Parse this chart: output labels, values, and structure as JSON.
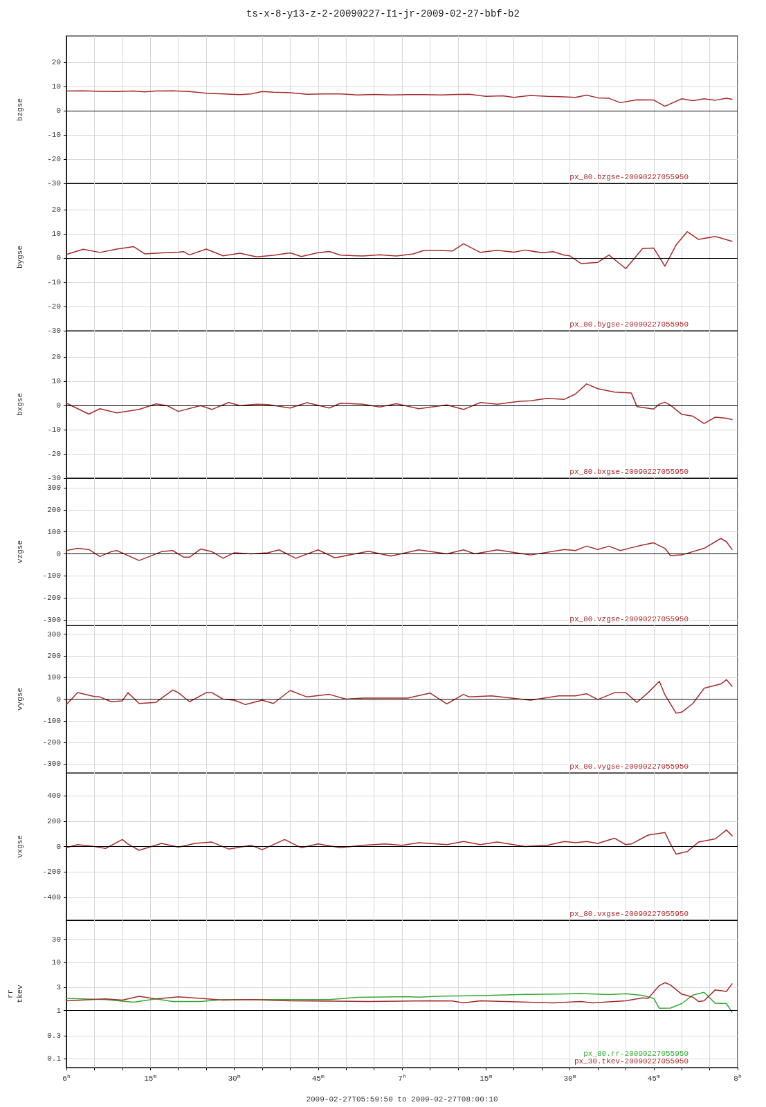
{
  "chart_data": [
    {
      "type": "line",
      "title": "ts-x-8-y13-z-2-20090227-I1-jr-2009-02-27-bbf-b2",
      "ylabel": "bzgse",
      "xlim": [
        "2009-02-27T06:00",
        "2009-02-27T08:00"
      ],
      "ylim": [
        -30,
        31
      ],
      "yticks": [
        -30,
        -20,
        -10,
        0,
        10,
        20
      ],
      "grid": true,
      "tick_labels": "y",
      "marker": "none",
      "line_style": "solid",
      "xticks": [
        {
          "value": "2009-02-27T06:00",
          "label": null
        },
        {
          "value": "2009-02-27T06:05",
          "label": null
        },
        {
          "value": "2009-02-27T06:10",
          "label": null
        },
        {
          "value": "2009-02-27T06:15",
          "label": null
        },
        {
          "value": "2009-02-27T06:20",
          "label": null
        },
        {
          "value": "2009-02-27T06:25",
          "label": null
        },
        {
          "value": "2009-02-27T06:30",
          "label": null
        },
        {
          "value": "2009-02-27T06:35",
          "label": null
        },
        {
          "value": "2009-02-27T06:40",
          "label": null
        },
        {
          "value": "2009-02-27T06:45",
          "label": null
        },
        {
          "value": "2009-02-27T06:50",
          "label": null
        },
        {
          "value": "2009-02-27T06:55",
          "label": null
        },
        {
          "value": "2009-02-27T07:00",
          "label": null
        },
        {
          "value": "2009-02-27T07:05",
          "label": null
        },
        {
          "value": "2009-02-27T07:10",
          "label": null
        },
        {
          "value": "2009-02-27T07:15",
          "label": null
        },
        {
          "value": "2009-02-27T07:20",
          "label": null
        },
        {
          "value": "2009-02-27T07:25",
          "label": null
        },
        {
          "value": "2009-02-27T07:30",
          "label": null
        },
        {
          "value": "2009-02-27T07:35",
          "label": null
        },
        {
          "value": "2009-02-27T07:40",
          "label": null
        },
        {
          "value": "2009-02-27T07:45",
          "label": null
        },
        {
          "value": "2009-02-27T07:50",
          "label": null
        },
        {
          "value": "2009-02-27T07:55",
          "label": null
        },
        {
          "value": "2009-02-27T08:00",
          "label": null
        }
      ],
      "ref_lines": [
        {
          "axis": "y",
          "value": 0,
          "color": "#000000"
        }
      ],
      "series": [
        {
          "name": "px_80.bzgse-20090227055950",
          "color": "#a52a2a",
          "x": [
            "2009-02-27T06:00",
            "2009-02-27T06:03",
            "2009-02-27T06:06",
            "2009-02-27T06:09",
            "2009-02-27T06:12",
            "2009-02-27T06:14",
            "2009-02-27T06:16",
            "2009-02-27T06:19",
            "2009-02-27T06:22",
            "2009-02-27T06:25",
            "2009-02-27T06:28",
            "2009-02-27T06:31",
            "2009-02-27T06:33",
            "2009-02-27T06:35",
            "2009-02-27T06:37",
            "2009-02-27T06:40",
            "2009-02-27T06:43",
            "2009-02-27T06:46",
            "2009-02-27T06:49",
            "2009-02-27T06:52",
            "2009-02-27T06:55",
            "2009-02-27T06:58",
            "2009-02-27T07:01",
            "2009-02-27T07:04",
            "2009-02-27T07:07",
            "2009-02-27T07:10",
            "2009-02-27T07:12",
            "2009-02-27T07:15",
            "2009-02-27T07:18",
            "2009-02-27T07:20",
            "2009-02-27T07:23",
            "2009-02-27T07:26",
            "2009-02-27T07:29",
            "2009-02-27T07:31",
            "2009-02-27T07:33",
            "2009-02-27T07:35",
            "2009-02-27T07:37",
            "2009-02-27T07:39",
            "2009-02-27T07:42",
            "2009-02-27T07:45",
            "2009-02-27T07:47",
            "2009-02-27T07:50",
            "2009-02-27T07:52",
            "2009-02-27T07:54",
            "2009-02-27T07:56",
            "2009-02-27T07:58",
            "2009-02-27T07:59"
          ],
          "values": [
            8.2,
            8.3,
            8.1,
            8.0,
            8.2,
            7.9,
            8.2,
            8.3,
            8.0,
            7.3,
            7.0,
            6.7,
            7.0,
            8.0,
            7.7,
            7.5,
            6.9,
            7.0,
            7.0,
            6.6,
            6.8,
            6.6,
            6.7,
            6.7,
            6.6,
            6.8,
            6.9,
            6.0,
            6.2,
            5.6,
            6.4,
            6.0,
            5.8,
            5.6,
            6.5,
            5.4,
            5.2,
            3.4,
            4.6,
            4.5,
            1.9,
            5.0,
            4.2,
            5.0,
            4.4,
            5.2,
            4.8
          ]
        }
      ]
    },
    {
      "type": "line",
      "ylabel": "bygse",
      "xlim": [
        "2009-02-27T06:00",
        "2009-02-27T08:00"
      ],
      "ylim": [
        -30,
        31
      ],
      "yticks": [
        -30,
        -20,
        -10,
        0,
        10,
        20
      ],
      "grid": true,
      "tick_labels": "y",
      "marker": "none",
      "line_style": "solid",
      "xticks": [
        {
          "value": "2009-02-27T06:00",
          "label": null
        },
        {
          "value": "2009-02-27T06:05",
          "label": null
        },
        {
          "value": "2009-02-27T06:10",
          "label": null
        },
        {
          "value": "2009-02-27T06:15",
          "label": null
        },
        {
          "value": "2009-02-27T06:20",
          "label": null
        },
        {
          "value": "2009-02-27T06:25",
          "label": null
        },
        {
          "value": "2009-02-27T06:30",
          "label": null
        },
        {
          "value": "2009-02-27T06:35",
          "label": null
        },
        {
          "value": "2009-02-27T06:40",
          "label": null
        },
        {
          "value": "2009-02-27T06:45",
          "label": null
        },
        {
          "value": "2009-02-27T06:50",
          "label": null
        },
        {
          "value": "2009-02-27T06:55",
          "label": null
        },
        {
          "value": "2009-02-27T07:00",
          "label": null
        },
        {
          "value": "2009-02-27T07:05",
          "label": null
        },
        {
          "value": "2009-02-27T07:10",
          "label": null
        },
        {
          "value": "2009-02-27T07:15",
          "label": null
        },
        {
          "value": "2009-02-27T07:20",
          "label": null
        },
        {
          "value": "2009-02-27T07:25",
          "label": null
        },
        {
          "value": "2009-02-27T07:30",
          "label": null
        },
        {
          "value": "2009-02-27T07:35",
          "label": null
        },
        {
          "value": "2009-02-27T07:40",
          "label": null
        },
        {
          "value": "2009-02-27T07:45",
          "label": null
        },
        {
          "value": "2009-02-27T07:50",
          "label": null
        },
        {
          "value": "2009-02-27T07:55",
          "label": null
        },
        {
          "value": "2009-02-27T08:00",
          "label": null
        }
      ],
      "ref_lines": [
        {
          "axis": "y",
          "value": 0,
          "color": "#000000"
        }
      ],
      "series": [
        {
          "name": "px_80.bygse-20090227055950",
          "color": "#a52a2a",
          "x": [
            "2009-02-27T06:00",
            "2009-02-27T06:03",
            "2009-02-27T06:06",
            "2009-02-27T06:09",
            "2009-02-27T06:12",
            "2009-02-27T06:14",
            "2009-02-27T06:17",
            "2009-02-27T06:20",
            "2009-02-27T06:21",
            "2009-02-27T06:22",
            "2009-02-27T06:25",
            "2009-02-27T06:28",
            "2009-02-27T06:31",
            "2009-02-27T06:34",
            "2009-02-27T06:37",
            "2009-02-27T06:40",
            "2009-02-27T06:42",
            "2009-02-27T06:45",
            "2009-02-27T06:47",
            "2009-02-27T06:49",
            "2009-02-27T06:53",
            "2009-02-27T06:56",
            "2009-02-27T06:59",
            "2009-02-27T07:02",
            "2009-02-27T07:04",
            "2009-02-27T07:06",
            "2009-02-27T07:09",
            "2009-02-27T07:11",
            "2009-02-27T07:14",
            "2009-02-27T07:17",
            "2009-02-27T07:20",
            "2009-02-27T07:22",
            "2009-02-27T07:25",
            "2009-02-27T07:27",
            "2009-02-27T07:29",
            "2009-02-27T07:30",
            "2009-02-27T07:32",
            "2009-02-27T07:35",
            "2009-02-27T07:37",
            "2009-02-27T07:40",
            "2009-02-27T07:43",
            "2009-02-27T07:45",
            "2009-02-27T07:47",
            "2009-02-27T07:49",
            "2009-02-27T07:51",
            "2009-02-27T07:53",
            "2009-02-27T07:56",
            "2009-02-27T07:59"
          ],
          "values": [
            1.6,
            3.7,
            2.4,
            3.8,
            4.8,
            1.8,
            2.2,
            2.5,
            2.7,
            1.4,
            3.8,
            1.0,
            2.1,
            0.6,
            1.2,
            2.2,
            0.7,
            2.3,
            2.8,
            1.3,
            0.9,
            1.4,
            0.9,
            1.8,
            3.3,
            3.3,
            3.0,
            6.0,
            2.4,
            3.3,
            2.5,
            3.4,
            2.3,
            2.7,
            1.3,
            1.0,
            -2.2,
            -1.7,
            1.3,
            -4.3,
            4.0,
            4.2,
            -3.3,
            5.5,
            11.0,
            7.8,
            9.0,
            7.0
          ]
        }
      ]
    },
    {
      "type": "line",
      "ylabel": "bxgse",
      "xlim": [
        "2009-02-27T06:00",
        "2009-02-27T08:00"
      ],
      "ylim": [
        -30,
        31
      ],
      "yticks": [
        -30,
        -20,
        -10,
        0,
        10,
        20
      ],
      "grid": true,
      "tick_labels": "y",
      "marker": "none",
      "line_style": "solid",
      "xticks": [
        {
          "value": "2009-02-27T06:00",
          "label": null
        },
        {
          "value": "2009-02-27T06:05",
          "label": null
        },
        {
          "value": "2009-02-27T06:10",
          "label": null
        },
        {
          "value": "2009-02-27T06:15",
          "label": null
        },
        {
          "value": "2009-02-27T06:20",
          "label": null
        },
        {
          "value": "2009-02-27T06:25",
          "label": null
        },
        {
          "value": "2009-02-27T06:30",
          "label": null
        },
        {
          "value": "2009-02-27T06:35",
          "label": null
        },
        {
          "value": "2009-02-27T06:40",
          "label": null
        },
        {
          "value": "2009-02-27T06:45",
          "label": null
        },
        {
          "value": "2009-02-27T06:50",
          "label": null
        },
        {
          "value": "2009-02-27T06:55",
          "label": null
        },
        {
          "value": "2009-02-27T07:00",
          "label": null
        },
        {
          "value": "2009-02-27T07:05",
          "label": null
        },
        {
          "value": "2009-02-27T07:10",
          "label": null
        },
        {
          "value": "2009-02-27T07:15",
          "label": null
        },
        {
          "value": "2009-02-27T07:20",
          "label": null
        },
        {
          "value": "2009-02-27T07:25",
          "label": null
        },
        {
          "value": "2009-02-27T07:30",
          "label": null
        },
        {
          "value": "2009-02-27T07:35",
          "label": null
        },
        {
          "value": "2009-02-27T07:40",
          "label": null
        },
        {
          "value": "2009-02-27T07:45",
          "label": null
        },
        {
          "value": "2009-02-27T07:50",
          "label": null
        },
        {
          "value": "2009-02-27T07:55",
          "label": null
        },
        {
          "value": "2009-02-27T08:00",
          "label": null
        }
      ],
      "ref_lines": [
        {
          "axis": "y",
          "value": 0,
          "color": "#000000"
        }
      ],
      "series": [
        {
          "name": "px_80.bxgse-20090227055950",
          "color": "#a52a2a",
          "x": [
            "2009-02-27T06:00",
            "2009-02-27T06:04",
            "2009-02-27T06:06",
            "2009-02-27T06:09",
            "2009-02-27T06:13",
            "2009-02-27T06:16",
            "2009-02-27T06:18",
            "2009-02-27T06:20",
            "2009-02-27T06:24",
            "2009-02-27T06:26",
            "2009-02-27T06:29",
            "2009-02-27T06:31",
            "2009-02-27T06:34",
            "2009-02-27T06:36",
            "2009-02-27T06:40",
            "2009-02-27T06:43",
            "2009-02-27T06:47",
            "2009-02-27T06:49",
            "2009-02-27T06:53",
            "2009-02-27T06:56",
            "2009-02-27T06:59",
            "2009-02-27T07:03",
            "2009-02-27T07:08",
            "2009-02-27T07:11",
            "2009-02-27T07:14",
            "2009-02-27T07:17",
            "2009-02-27T07:21",
            "2009-02-27T07:23",
            "2009-02-27T07:26",
            "2009-02-27T07:29",
            "2009-02-27T07:31",
            "2009-02-27T07:33",
            "2009-02-27T07:35",
            "2009-02-27T07:38",
            "2009-02-27T07:41",
            "2009-02-27T07:42",
            "2009-02-27T07:45",
            "2009-02-27T07:46",
            "2009-02-27T07:47",
            "2009-02-27T07:48",
            "2009-02-27T07:50",
            "2009-02-27T07:52",
            "2009-02-27T07:54",
            "2009-02-27T07:56",
            "2009-02-27T07:58",
            "2009-02-27T07:59"
          ],
          "values": [
            1.0,
            -3.5,
            -1.3,
            -3.0,
            -1.6,
            0.7,
            0,
            -2.4,
            0,
            -1.6,
            1.3,
            0,
            0.6,
            0.4,
            -1.0,
            1.2,
            -1.0,
            1.0,
            0.6,
            -0.6,
            0.8,
            -1.3,
            0.3,
            -1.6,
            1.3,
            0.6,
            1.8,
            2.0,
            3.0,
            2.6,
            4.8,
            9.0,
            7.0,
            5.6,
            5.2,
            -0.4,
            -1.4,
            0.6,
            1.4,
            0.2,
            -3.6,
            -4.4,
            -7.4,
            -4.8,
            -5.2,
            -5.8
          ]
        }
      ]
    },
    {
      "type": "line",
      "ylabel": "vzgse",
      "xlim": [
        "2009-02-27T06:00",
        "2009-02-27T08:00"
      ],
      "ylim": [
        -325,
        344
      ],
      "yticks": [
        -300,
        -200,
        -100,
        0,
        100,
        200,
        300
      ],
      "grid": true,
      "tick_labels": "y",
      "marker": "none",
      "line_style": "solid",
      "xticks": [
        {
          "value": "2009-02-27T06:00",
          "label": null
        },
        {
          "value": "2009-02-27T06:05",
          "label": null
        },
        {
          "value": "2009-02-27T06:10",
          "label": null
        },
        {
          "value": "2009-02-27T06:15",
          "label": null
        },
        {
          "value": "2009-02-27T06:20",
          "label": null
        },
        {
          "value": "2009-02-27T06:25",
          "label": null
        },
        {
          "value": "2009-02-27T06:30",
          "label": null
        },
        {
          "value": "2009-02-27T06:35",
          "label": null
        },
        {
          "value": "2009-02-27T06:40",
          "label": null
        },
        {
          "value": "2009-02-27T06:45",
          "label": null
        },
        {
          "value": "2009-02-27T06:50",
          "label": null
        },
        {
          "value": "2009-02-27T06:55",
          "label": null
        },
        {
          "value": "2009-02-27T07:00",
          "label": null
        },
        {
          "value": "2009-02-27T07:05",
          "label": null
        },
        {
          "value": "2009-02-27T07:10",
          "label": null
        },
        {
          "value": "2009-02-27T07:15",
          "label": null
        },
        {
          "value": "2009-02-27T07:20",
          "label": null
        },
        {
          "value": "2009-02-27T07:25",
          "label": null
        },
        {
          "value": "2009-02-27T07:30",
          "label": null
        },
        {
          "value": "2009-02-27T07:35",
          "label": null
        },
        {
          "value": "2009-02-27T07:40",
          "label": null
        },
        {
          "value": "2009-02-27T07:45",
          "label": null
        },
        {
          "value": "2009-02-27T07:50",
          "label": null
        },
        {
          "value": "2009-02-27T07:55",
          "label": null
        },
        {
          "value": "2009-02-27T08:00",
          "label": null
        }
      ],
      "ref_lines": [
        {
          "axis": "y",
          "value": 0,
          "color": "#000000"
        }
      ],
      "series": [
        {
          "name": "px_80.vzgse-20090227055950",
          "color": "#a52a2a",
          "x": [
            "2009-02-27T06:00",
            "2009-02-27T06:02",
            "2009-02-27T06:04",
            "2009-02-27T06:06",
            "2009-02-27T06:08",
            "2009-02-27T06:09",
            "2009-02-27T06:13",
            "2009-02-27T06:17",
            "2009-02-27T06:19",
            "2009-02-27T06:21",
            "2009-02-27T06:22",
            "2009-02-27T06:24",
            "2009-02-27T06:26",
            "2009-02-27T06:28",
            "2009-02-27T06:30",
            "2009-02-27T06:33",
            "2009-02-27T06:36",
            "2009-02-27T06:38",
            "2009-02-27T06:41",
            "2009-02-27T06:45",
            "2009-02-27T06:48",
            "2009-02-27T06:54",
            "2009-02-27T06:58",
            "2009-02-27T07:03",
            "2009-02-27T07:08",
            "2009-02-27T07:11",
            "2009-02-27T07:13",
            "2009-02-27T07:17",
            "2009-02-27T07:23",
            "2009-02-27T07:29",
            "2009-02-27T07:31",
            "2009-02-27T07:33",
            "2009-02-27T07:35",
            "2009-02-27T07:37",
            "2009-02-27T07:39",
            "2009-02-27T07:41",
            "2009-02-27T07:43",
            "2009-02-27T07:45",
            "2009-02-27T07:47",
            "2009-02-27T07:48",
            "2009-02-27T07:50",
            "2009-02-27T07:54",
            "2009-02-27T07:57",
            "2009-02-27T07:58",
            "2009-02-27T07:59"
          ],
          "values": [
            15,
            25,
            20,
            -12,
            10,
            15,
            -30,
            10,
            15,
            -15,
            -15,
            22,
            10,
            -20,
            5,
            0,
            5,
            18,
            -20,
            18,
            -18,
            12,
            -10,
            18,
            0,
            18,
            0,
            18,
            -5,
            20,
            15,
            35,
            20,
            35,
            15,
            28,
            40,
            50,
            25,
            -8,
            -5,
            25,
            70,
            55,
            20
          ]
        }
      ]
    },
    {
      "type": "line",
      "ylabel": "vygse",
      "xlim": [
        "2009-02-27T06:00",
        "2009-02-27T08:00"
      ],
      "ylim": [
        -340,
        340
      ],
      "yticks": [
        -300,
        -200,
        -100,
        0,
        100,
        200,
        300
      ],
      "grid": true,
      "tick_labels": "y",
      "marker": "none",
      "line_style": "solid",
      "xticks": [
        {
          "value": "2009-02-27T06:00",
          "label": null
        },
        {
          "value": "2009-02-27T06:05",
          "label": null
        },
        {
          "value": "2009-02-27T06:10",
          "label": null
        },
        {
          "value": "2009-02-27T06:15",
          "label": null
        },
        {
          "value": "2009-02-27T06:20",
          "label": null
        },
        {
          "value": "2009-02-27T06:25",
          "label": null
        },
        {
          "value": "2009-02-27T06:30",
          "label": null
        },
        {
          "value": "2009-02-27T06:35",
          "label": null
        },
        {
          "value": "2009-02-27T06:40",
          "label": null
        },
        {
          "value": "2009-02-27T06:45",
          "label": null
        },
        {
          "value": "2009-02-27T06:50",
          "label": null
        },
        {
          "value": "2009-02-27T06:55",
          "label": null
        },
        {
          "value": "2009-02-27T07:00",
          "label": null
        },
        {
          "value": "2009-02-27T07:05",
          "label": null
        },
        {
          "value": "2009-02-27T07:10",
          "label": null
        },
        {
          "value": "2009-02-27T07:15",
          "label": null
        },
        {
          "value": "2009-02-27T07:20",
          "label": null
        },
        {
          "value": "2009-02-27T07:25",
          "label": null
        },
        {
          "value": "2009-02-27T07:30",
          "label": null
        },
        {
          "value": "2009-02-27T07:35",
          "label": null
        },
        {
          "value": "2009-02-27T07:40",
          "label": null
        },
        {
          "value": "2009-02-27T07:45",
          "label": null
        },
        {
          "value": "2009-02-27T07:50",
          "label": null
        },
        {
          "value": "2009-02-27T07:55",
          "label": null
        },
        {
          "value": "2009-02-27T08:00",
          "label": null
        }
      ],
      "ref_lines": [
        {
          "axis": "y",
          "value": 0,
          "color": "#000000"
        }
      ],
      "series": [
        {
          "name": "px_80.vygse-20090227055950",
          "color": "#a52a2a",
          "x": [
            "2009-02-27T06:00",
            "2009-02-27T06:02",
            "2009-02-27T06:05",
            "2009-02-27T06:06",
            "2009-02-27T06:08",
            "2009-02-27T06:10",
            "2009-02-27T06:11",
            "2009-02-27T06:13",
            "2009-02-27T06:16",
            "2009-02-27T06:19",
            "2009-02-27T06:20",
            "2009-02-27T06:22",
            "2009-02-27T06:25",
            "2009-02-27T06:26",
            "2009-02-27T06:28",
            "2009-02-27T06:30",
            "2009-02-27T06:32",
            "2009-02-27T06:35",
            "2009-02-27T06:37",
            "2009-02-27T06:40",
            "2009-02-27T06:43",
            "2009-02-27T06:47",
            "2009-02-27T06:50",
            "2009-02-27T06:53",
            "2009-02-27T06:58",
            "2009-02-27T07:01",
            "2009-02-27T07:05",
            "2009-02-27T07:08",
            "2009-02-27T07:11",
            "2009-02-27T07:12",
            "2009-02-27T07:16",
            "2009-02-27T07:23",
            "2009-02-27T07:28",
            "2009-02-27T07:31",
            "2009-02-27T07:33",
            "2009-02-27T07:35",
            "2009-02-27T07:38",
            "2009-02-27T07:40",
            "2009-02-27T07:42",
            "2009-02-27T07:44",
            "2009-02-27T07:46",
            "2009-02-27T07:47",
            "2009-02-27T07:49",
            "2009-02-27T07:50",
            "2009-02-27T07:52",
            "2009-02-27T07:54",
            "2009-02-27T07:57",
            "2009-02-27T07:58",
            "2009-02-27T07:59"
          ],
          "values": [
            -25,
            30,
            12,
            10,
            -12,
            -8,
            30,
            -20,
            -15,
            42,
            30,
            -12,
            30,
            30,
            0,
            -5,
            -25,
            -5,
            -20,
            40,
            10,
            22,
            0,
            5,
            5,
            5,
            28,
            -22,
            22,
            10,
            15,
            -5,
            15,
            15,
            25,
            -2,
            30,
            30,
            -15,
            30,
            82,
            20,
            -65,
            -60,
            -20,
            50,
            70,
            90,
            60
          ]
        }
      ]
    },
    {
      "type": "line",
      "ylabel": "vxgse",
      "xlim": [
        "2009-02-27T06:00",
        "2009-02-27T08:00"
      ],
      "ylim": [
        -580,
        580
      ],
      "yticks": [
        -400,
        -200,
        0,
        200,
        400
      ],
      "grid": true,
      "tick_labels": "y",
      "marker": "none",
      "line_style": "solid",
      "xticks": [
        {
          "value": "2009-02-27T06:00",
          "label": null
        },
        {
          "value": "2009-02-27T06:05",
          "label": null
        },
        {
          "value": "2009-02-27T06:10",
          "label": null
        },
        {
          "value": "2009-02-27T06:15",
          "label": null
        },
        {
          "value": "2009-02-27T06:20",
          "label": null
        },
        {
          "value": "2009-02-27T06:25",
          "label": null
        },
        {
          "value": "2009-02-27T06:30",
          "label": null
        },
        {
          "value": "2009-02-27T06:35",
          "label": null
        },
        {
          "value": "2009-02-27T06:40",
          "label": null
        },
        {
          "value": "2009-02-27T06:45",
          "label": null
        },
        {
          "value": "2009-02-27T06:50",
          "label": null
        },
        {
          "value": "2009-02-27T06:55",
          "label": null
        },
        {
          "value": "2009-02-27T07:00",
          "label": null
        },
        {
          "value": "2009-02-27T07:05",
          "label": null
        },
        {
          "value": "2009-02-27T07:10",
          "label": null
        },
        {
          "value": "2009-02-27T07:15",
          "label": null
        },
        {
          "value": "2009-02-27T07:20",
          "label": null
        },
        {
          "value": "2009-02-27T07:25",
          "label": null
        },
        {
          "value": "2009-02-27T07:30",
          "label": null
        },
        {
          "value": "2009-02-27T07:35",
          "label": null
        },
        {
          "value": "2009-02-27T07:40",
          "label": null
        },
        {
          "value": "2009-02-27T07:45",
          "label": null
        },
        {
          "value": "2009-02-27T07:50",
          "label": null
        },
        {
          "value": "2009-02-27T07:55",
          "label": null
        },
        {
          "value": "2009-02-27T08:00",
          "label": null
        }
      ],
      "ref_lines": [
        {
          "axis": "y",
          "value": 0,
          "color": "#000000"
        }
      ],
      "series": [
        {
          "name": "px_80.vxgse-20090227055950",
          "color": "#a52a2a",
          "x": [
            "2009-02-27T06:00",
            "2009-02-27T06:02",
            "2009-02-27T06:05",
            "2009-02-27T06:07",
            "2009-02-27T06:10",
            "2009-02-27T06:11",
            "2009-02-27T06:13",
            "2009-02-27T06:17",
            "2009-02-27T06:20",
            "2009-02-27T06:23",
            "2009-02-27T06:26",
            "2009-02-27T06:29",
            "2009-02-27T06:33",
            "2009-02-27T06:35",
            "2009-02-27T06:39",
            "2009-02-27T06:42",
            "2009-02-27T06:45",
            "2009-02-27T06:49",
            "2009-02-27T06:53",
            "2009-02-27T06:57",
            "2009-02-27T07:00",
            "2009-02-27T07:03",
            "2009-02-27T07:08",
            "2009-02-27T07:11",
            "2009-02-27T07:14",
            "2009-02-27T07:17",
            "2009-02-27T07:22",
            "2009-02-27T07:26",
            "2009-02-27T07:29",
            "2009-02-27T07:31",
            "2009-02-27T07:33",
            "2009-02-27T07:35",
            "2009-02-27T07:38",
            "2009-02-27T07:40",
            "2009-02-27T07:41",
            "2009-02-27T07:44",
            "2009-02-27T07:47",
            "2009-02-27T07:48",
            "2009-02-27T07:49",
            "2009-02-27T07:51",
            "2009-02-27T07:53",
            "2009-02-27T07:56",
            "2009-02-27T07:58",
            "2009-02-27T07:59"
          ],
          "values": [
            -10,
            15,
            0,
            -15,
            55,
            20,
            -30,
            25,
            -5,
            25,
            35,
            -20,
            10,
            -25,
            55,
            -10,
            20,
            -10,
            10,
            20,
            10,
            30,
            15,
            40,
            15,
            35,
            0,
            10,
            40,
            30,
            40,
            25,
            65,
            15,
            20,
            90,
            110,
            20,
            -60,
            -40,
            35,
            60,
            130,
            85
          ]
        }
      ]
    },
    {
      "type": "line",
      "ylabel": "rr\ntkev",
      "xlabel": "2009-02-27T05:59:50 to 2009-02-27T08:00:10",
      "xlim": [
        "2009-02-27T06:00",
        "2009-02-27T08:00"
      ],
      "ylim": [
        0.066,
        75
      ],
      "yticks": [
        0.1,
        0.3,
        1,
        3,
        10,
        30
      ],
      "log": true,
      "grid": true,
      "marker": "none",
      "line_style": "solid",
      "xticks": [
        {
          "value": "2009-02-27T06:00",
          "label": "6$^{h}$"
        },
        {
          "value": "2009-02-27T06:05",
          "label": null
        },
        {
          "value": "2009-02-27T06:10",
          "label": null
        },
        {
          "value": "2009-02-27T06:15",
          "label": "15$^{m}$"
        },
        {
          "value": "2009-02-27T06:20",
          "label": null
        },
        {
          "value": "2009-02-27T06:25",
          "label": null
        },
        {
          "value": "2009-02-27T06:30",
          "label": "30$^{m}$"
        },
        {
          "value": "2009-02-27T06:35",
          "label": null
        },
        {
          "value": "2009-02-27T06:40",
          "label": null
        },
        {
          "value": "2009-02-27T06:45",
          "label": "45$^{m}$"
        },
        {
          "value": "2009-02-27T06:50",
          "label": null
        },
        {
          "value": "2009-02-27T06:55",
          "label": null
        },
        {
          "value": "2009-02-27T07:00",
          "label": "7$^{h}$"
        },
        {
          "value": "2009-02-27T07:05",
          "label": null
        },
        {
          "value": "2009-02-27T07:10",
          "label": null
        },
        {
          "value": "2009-02-27T07:15",
          "label": "15$^{m}$"
        },
        {
          "value": "2009-02-27T07:20",
          "label": null
        },
        {
          "value": "2009-02-27T07:25",
          "label": null
        },
        {
          "value": "2009-02-27T07:30",
          "label": "30$^{m}$"
        },
        {
          "value": "2009-02-27T07:35",
          "label": null
        },
        {
          "value": "2009-02-27T07:40",
          "label": null
        },
        {
          "value": "2009-02-27T07:45",
          "label": "45$^{m}$"
        },
        {
          "value": "2009-02-27T07:50",
          "label": null
        },
        {
          "value": "2009-02-27T07:55",
          "label": null
        },
        {
          "value": "2009-02-27T08:00",
          "label": "8$^{h}$"
        }
      ],
      "ref_lines": [
        {
          "axis": "y",
          "value": 1,
          "color": "#000000"
        }
      ],
      "series": [
        {
          "name": "px_80.rr-20090227055950",
          "color": "#33a833",
          "x": [
            "2009-02-27T06:00",
            "2009-02-27T06:07",
            "2009-02-27T06:12",
            "2009-02-27T06:16",
            "2009-02-27T06:19",
            "2009-02-27T06:24",
            "2009-02-27T06:28",
            "2009-02-27T06:40",
            "2009-02-27T06:47",
            "2009-02-27T06:52",
            "2009-02-27T07:01",
            "2009-02-27T07:03",
            "2009-02-27T07:07",
            "2009-02-27T07:14",
            "2009-02-27T07:22",
            "2009-02-27T07:28",
            "2009-02-27T07:32",
            "2009-02-27T07:37",
            "2009-02-27T07:40",
            "2009-02-27T07:43",
            "2009-02-27T07:45",
            "2009-02-27T07:46",
            "2009-02-27T07:48",
            "2009-02-27T07:50",
            "2009-02-27T07:52",
            "2009-02-27T07:54",
            "2009-02-27T07:56",
            "2009-02-27T07:58",
            "2009-02-27T07:59"
          ],
          "values": [
            1.8,
            1.7,
            1.5,
            1.75,
            1.55,
            1.55,
            1.7,
            1.7,
            1.7,
            1.88,
            1.95,
            1.9,
            2.0,
            2.05,
            2.17,
            2.2,
            2.27,
            2.15,
            2.25,
            2.07,
            1.8,
            1.12,
            1.13,
            1.4,
            2.1,
            2.4,
            1.42,
            1.4,
            0.93
          ]
        },
        {
          "name": "px_30.tkev-20090227055950",
          "color": "#a52a2a",
          "x": [
            "2009-02-27T06:00",
            "2009-02-27T06:07",
            "2009-02-27T06:10",
            "2009-02-27T06:13",
            "2009-02-27T06:16",
            "2009-02-27T06:20",
            "2009-02-27T06:24",
            "2009-02-27T06:28",
            "2009-02-27T06:33",
            "2009-02-27T06:40",
            "2009-02-27T06:54",
            "2009-02-27T07:05",
            "2009-02-27T07:09",
            "2009-02-27T07:11",
            "2009-02-27T07:14",
            "2009-02-27T07:27",
            "2009-02-27T07:32",
            "2009-02-27T07:34",
            "2009-02-27T07:40",
            "2009-02-27T07:43",
            "2009-02-27T07:44",
            "2009-02-27T07:46",
            "2009-02-27T07:47",
            "2009-02-27T07:48",
            "2009-02-27T07:50",
            "2009-02-27T07:52",
            "2009-02-27T07:53",
            "2009-02-27T07:54",
            "2009-02-27T07:56",
            "2009-02-27T07:58",
            "2009-02-27T07:59"
          ],
          "values": [
            1.6,
            1.75,
            1.65,
            1.98,
            1.75,
            1.93,
            1.8,
            1.65,
            1.7,
            1.6,
            1.55,
            1.6,
            1.58,
            1.45,
            1.6,
            1.45,
            1.55,
            1.45,
            1.6,
            1.84,
            1.8,
            3.3,
            3.8,
            3.4,
            2.2,
            1.9,
            1.55,
            1.6,
            2.7,
            2.5,
            3.6
          ]
        }
      ]
    }
  ]
}
